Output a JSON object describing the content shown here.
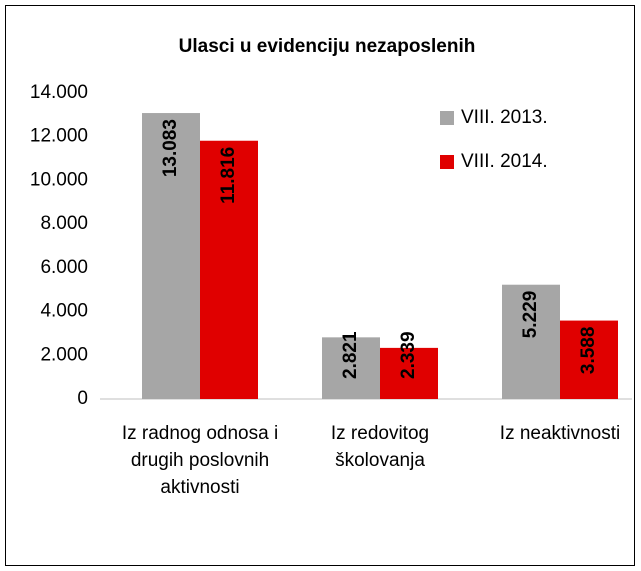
{
  "chart_data": {
    "type": "bar",
    "title": "Ulasci u evidenciju nezaposlenih",
    "categories": [
      "Iz radnog odnosa i drugih poslovnih aktivnosti",
      "Iz redovitog školovanja",
      "Iz neaktivnosti"
    ],
    "series": [
      {
        "name": "VIII. 2013.",
        "color": "#a6a6a6",
        "values": [
          13083,
          2821,
          5229
        ],
        "value_labels": [
          "13.083",
          "2.821",
          "5.229"
        ]
      },
      {
        "name": "VIII. 2014.",
        "color": "#e00000",
        "values": [
          11816,
          2339,
          3588
        ],
        "value_labels": [
          "11.816",
          "2.339",
          "3.588"
        ]
      }
    ],
    "ylim": [
      0,
      14000
    ],
    "yticks": [
      0,
      {
        "value": 2000,
        "label": "2.000"
      },
      {
        "value": 4000,
        "label": "4.000"
      },
      {
        "value": 6000,
        "label": "6.000"
      },
      {
        "value": 8000,
        "label": "8.000"
      },
      {
        "value": 10000,
        "label": "10.000"
      },
      {
        "value": 12000,
        "label": "12.000"
      },
      {
        "value": 14000,
        "label": "14.000"
      }
    ],
    "legend": "top-right"
  }
}
